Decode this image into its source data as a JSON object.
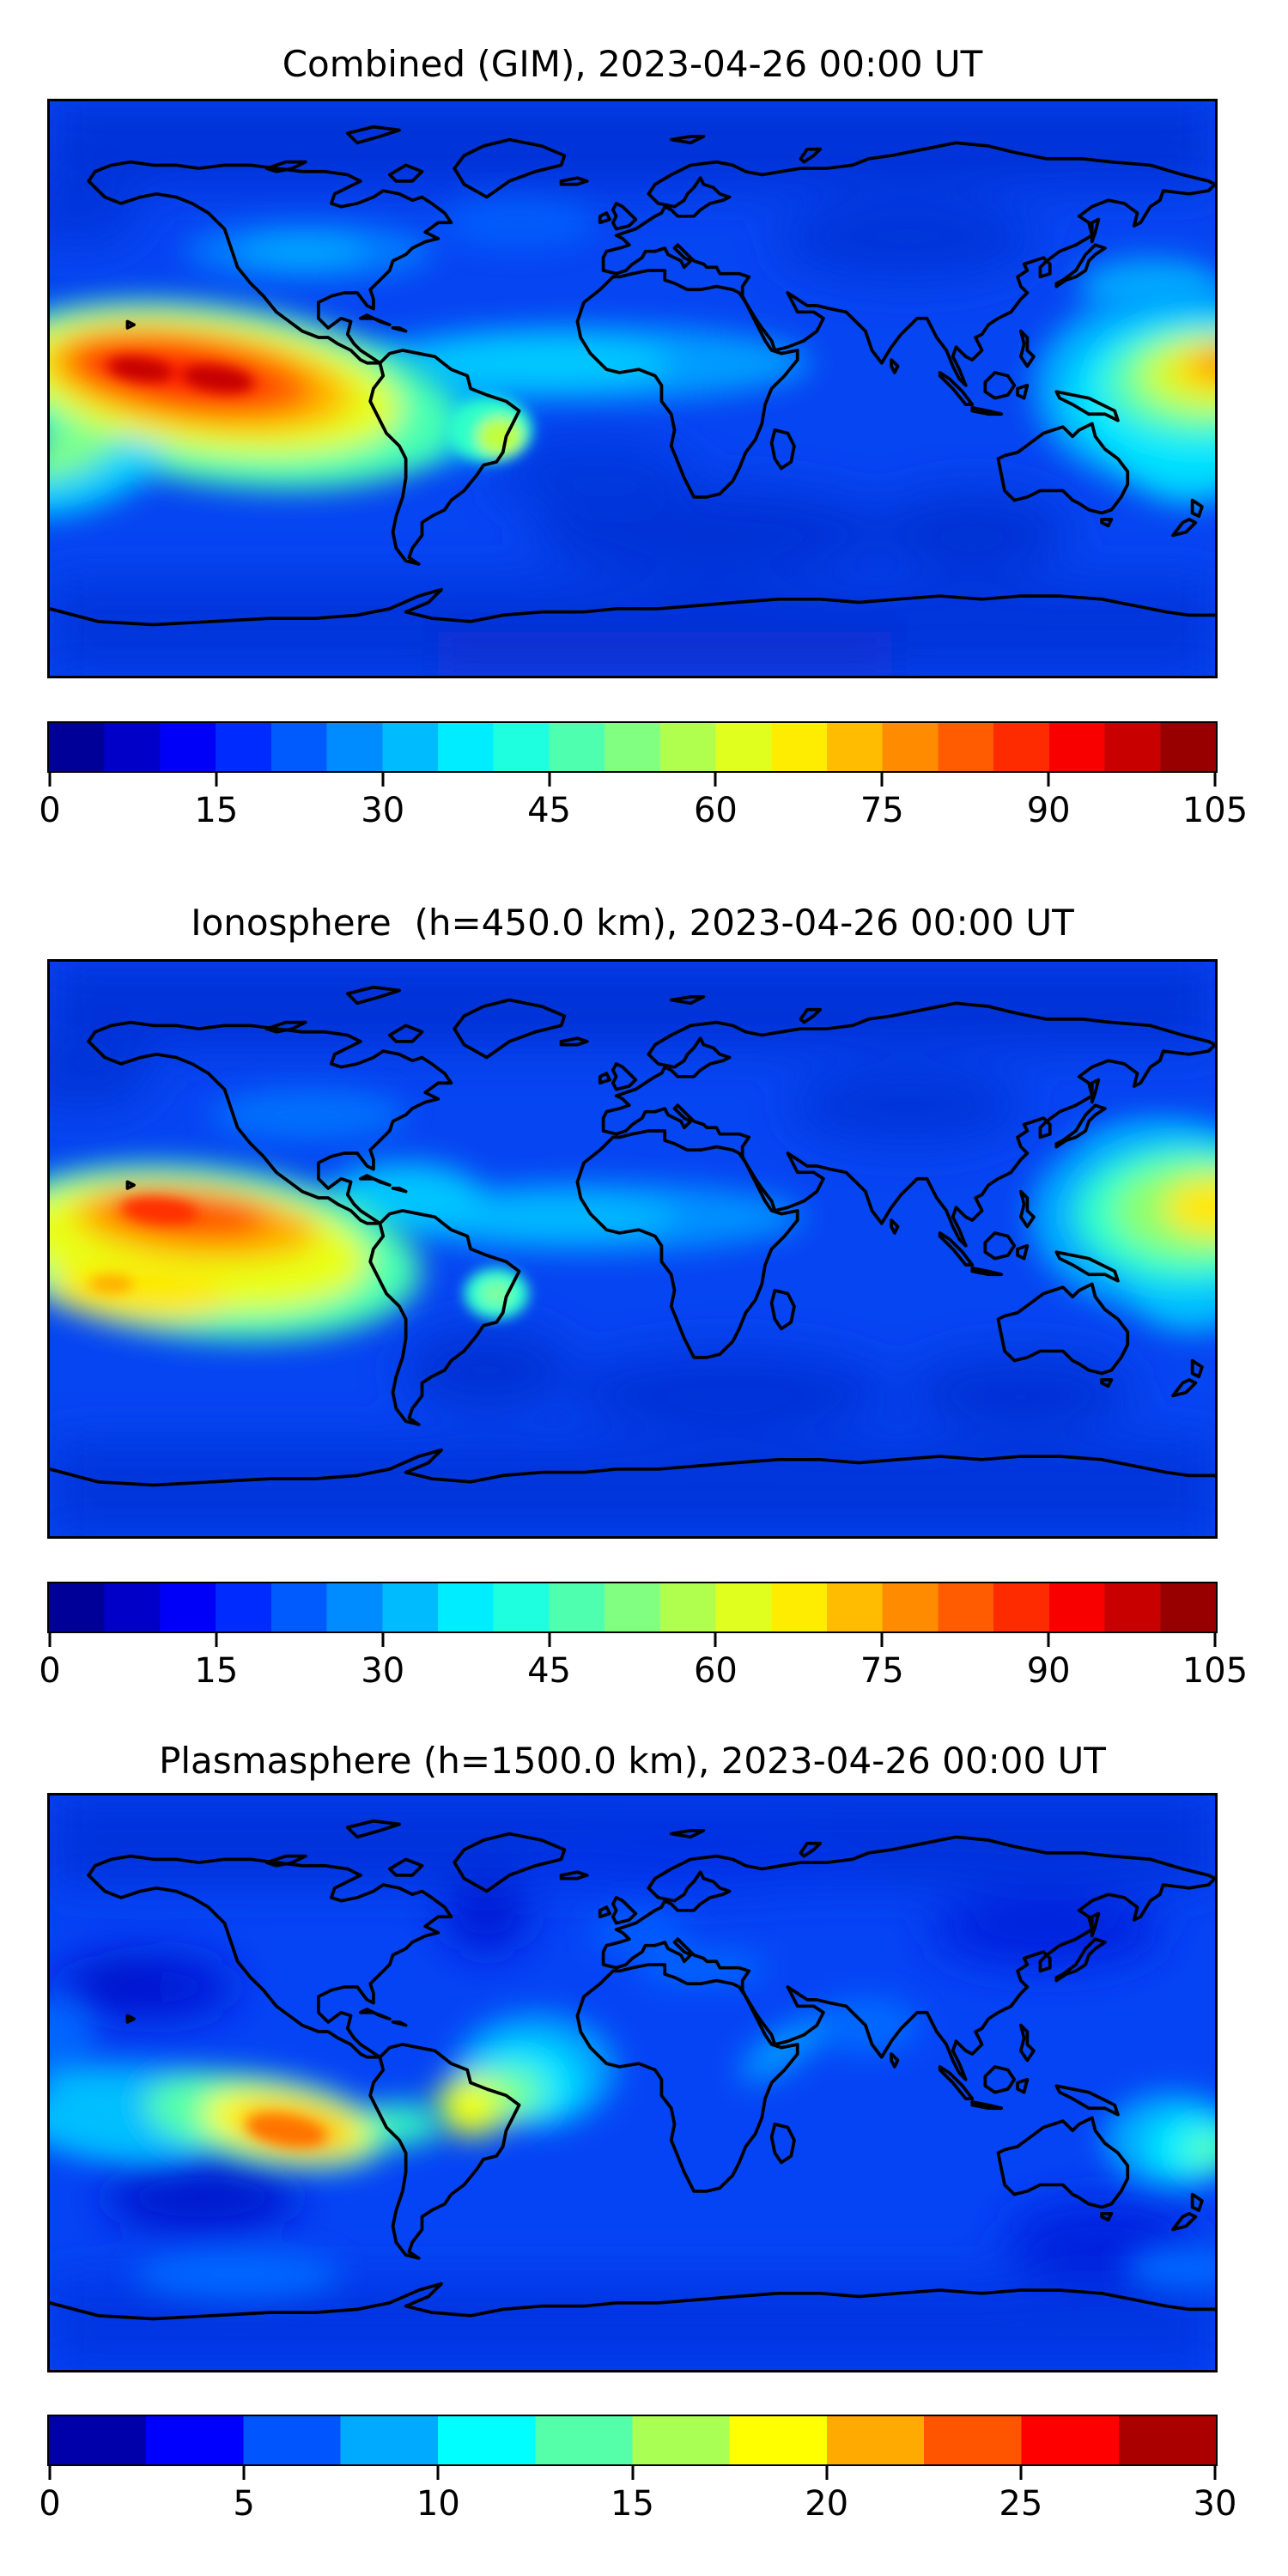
{
  "figure": {
    "timestamp": "2023-04-26 00:00 UT",
    "colormap_name": "jet",
    "text_color": "#000000",
    "background_color": "#ffffff"
  },
  "panels": [
    {
      "title": "Combined (GIM), 2023-04-26 00:00 UT",
      "colorbar": {
        "min": 0,
        "max": 105,
        "segment_step": 5,
        "ticks": [
          0,
          15,
          30,
          45,
          60,
          75,
          90,
          105
        ],
        "colors": [
          "#000098",
          "#0000c8",
          "#0000f9",
          "#002bff",
          "#005bff",
          "#008cff",
          "#00bcff",
          "#00edff",
          "#1effe0",
          "#4fffb0",
          "#80ff80",
          "#b0ff4f",
          "#e0ff1e",
          "#ffed00",
          "#ffbc00",
          "#ff8c00",
          "#ff5b00",
          "#ff2b00",
          "#f90000",
          "#c80000",
          "#980000"
        ]
      }
    },
    {
      "title": "Ionosphere  (h=450.0 km), 2023-04-26 00:00 UT",
      "colorbar": {
        "min": 0,
        "max": 105,
        "segment_step": 5,
        "ticks": [
          0,
          15,
          30,
          45,
          60,
          75,
          90,
          105
        ],
        "colors": [
          "#000098",
          "#0000c8",
          "#0000f9",
          "#002bff",
          "#005bff",
          "#008cff",
          "#00bcff",
          "#00edff",
          "#1effe0",
          "#4fffb0",
          "#80ff80",
          "#b0ff4f",
          "#e0ff1e",
          "#ffed00",
          "#ffbc00",
          "#ff8c00",
          "#ff5b00",
          "#ff2b00",
          "#f90000",
          "#c80000",
          "#980000"
        ]
      }
    },
    {
      "title": "Plasmasphere (h=1500.0 km), 2023-04-26 00:00 UT",
      "colorbar": {
        "min": 0,
        "max": 30,
        "segment_step": 2.5,
        "ticks": [
          0,
          5,
          10,
          15,
          20,
          25,
          30
        ],
        "colors": [
          "#0000aa",
          "#0000ff",
          "#0055ff",
          "#00aaff",
          "#00ffff",
          "#55ffaa",
          "#aaff55",
          "#ffff00",
          "#ffaa00",
          "#ff5500",
          "#ff0000",
          "#aa0000"
        ]
      }
    }
  ],
  "chart_data": [
    {
      "type": "heatmap",
      "subtype": "filled-contour world map, equirectangular projection",
      "title": "Combined (GIM), 2023-04-26 00:00 UT",
      "lon_range": [
        -180,
        180
      ],
      "lat_range": [
        -90,
        90
      ],
      "colormap": "jet",
      "value_range": [
        0,
        105
      ],
      "colorbar_ticks": [
        0,
        15,
        30,
        45,
        60,
        75,
        90,
        105
      ],
      "features": [
        {
          "name": "equatorial anomaly peak, central/eastern Pacific",
          "lon": -135,
          "lat": 5,
          "approx_value": 103
        },
        {
          "name": "secondary peak core",
          "lon": -152,
          "lat": 6,
          "approx_value": 100
        },
        {
          "name": "western Pacific enhancement near dateline",
          "lon": 178,
          "lat": 6,
          "approx_value": 85
        },
        {
          "name": "equatorial Africa/Atlantic cyan band",
          "lon": -20,
          "lat": 8,
          "approx_value": 35
        },
        {
          "name": "south Brazil coast green spot",
          "lon": -41,
          "lat": -15,
          "approx_value": 55
        },
        {
          "name": "mid-latitude background",
          "approx_value_range": [
            10,
            25
          ]
        },
        {
          "name": "south Indian Ocean minimum",
          "lon": 25,
          "lat": -45,
          "approx_value": 8
        }
      ]
    },
    {
      "type": "heatmap",
      "subtype": "filled-contour world map, equirectangular projection",
      "title": "Ionosphere  (h=450.0 km), 2023-04-26 00:00 UT",
      "lon_range": [
        -180,
        180
      ],
      "lat_range": [
        -90,
        90
      ],
      "colormap": "jet",
      "value_range": [
        0,
        105
      ],
      "colorbar_ticks": [
        0,
        15,
        30,
        45,
        60,
        75,
        90,
        105
      ],
      "features": [
        {
          "name": "equatorial anomaly northern crest, Pacific",
          "lon": -138,
          "lat": 11,
          "approx_value": 90
        },
        {
          "name": "southern yellow crest, Pacific",
          "lon": -152,
          "lat": -14,
          "approx_value": 70
        },
        {
          "name": "western Pacific enhancement near dateline",
          "lon": 180,
          "lat": 13,
          "approx_value": 70
        },
        {
          "name": "equatorial Africa/Atlantic band",
          "lon": -12,
          "lat": 10,
          "approx_value": 30
        },
        {
          "name": "mid-latitude background",
          "approx_value_range": [
            8,
            20
          ]
        }
      ]
    },
    {
      "type": "heatmap",
      "subtype": "filled-contour world map, equirectangular projection",
      "title": "Plasmasphere (h=1500.0 km), 2023-04-26 00:00 UT",
      "lon_range": [
        -180,
        180
      ],
      "lat_range": [
        -90,
        90
      ],
      "colormap": "jet",
      "value_range": [
        0,
        30
      ],
      "colorbar_ticks": [
        0,
        5,
        10,
        15,
        20,
        25,
        30
      ],
      "features": [
        {
          "name": "southeast Pacific plasmaspheric peak",
          "lon": -107,
          "lat": -15,
          "approx_value": 25
        },
        {
          "name": "northeast Brazil secondary yellow spot",
          "lon": -51,
          "lat": -8,
          "approx_value": 20
        },
        {
          "name": "equatorial Atlantic cyan/green patch",
          "lon": -33,
          "lat": 0,
          "approx_value": 16
        },
        {
          "name": "southwest Pacific cyan patch",
          "lon": 173,
          "lat": -20,
          "approx_value": 15
        },
        {
          "name": "background oceans",
          "approx_value_range": [
            4,
            8
          ]
        },
        {
          "name": "north Pacific minimum",
          "lon": -155,
          "lat": 30,
          "approx_value": 2
        },
        {
          "name": "south Pacific minimum",
          "lon": -133,
          "lat": -36,
          "approx_value": 2
        }
      ]
    }
  ]
}
